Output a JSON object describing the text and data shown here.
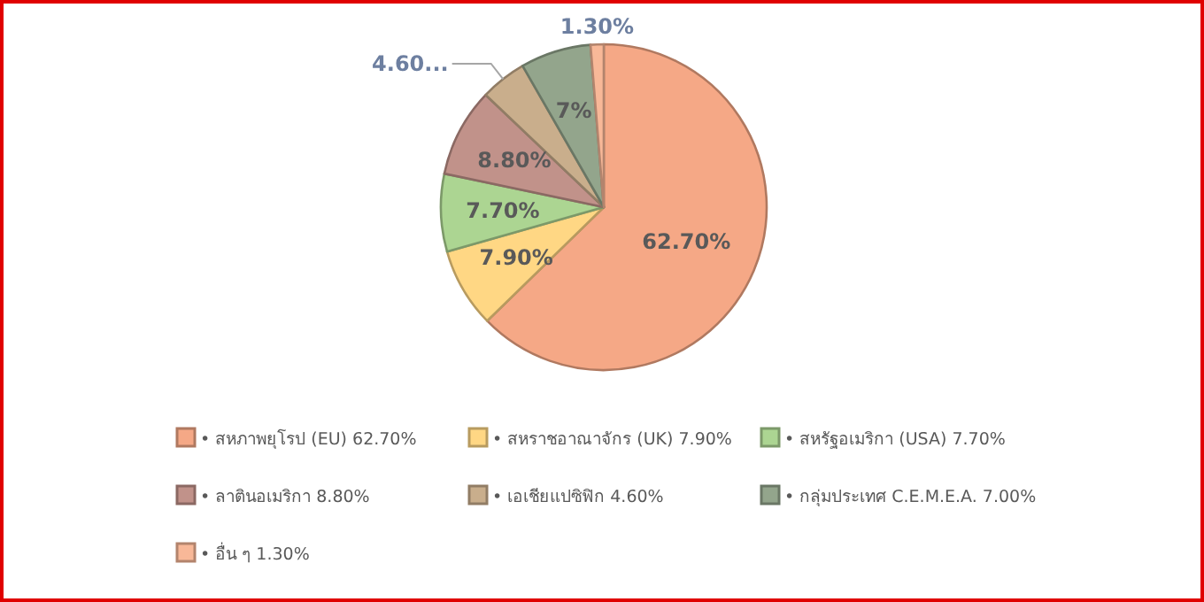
{
  "chart_data": {
    "type": "pie",
    "categories": [
      "• สหภาพยุโรป (EU) 62.70%",
      "• สหราชอาณาจักร (UK) 7.90%",
      "• สหรัฐอเมริกา (USA) 7.70%",
      "• ลาตินอเมริกา 8.80%",
      "• เอเชียแปซิฟิก 4.60%",
      "• กลุ่มประเทศ C.E.M.E.A. 7.00%",
      "• อื่น ๆ 1.30%"
    ],
    "values": [
      62.7,
      7.9,
      7.7,
      8.8,
      4.6,
      7.0,
      1.3
    ],
    "colors": [
      "#f5a886",
      "#ffd784",
      "#acd592",
      "#c1928a",
      "#c9ae8c",
      "#93a58c",
      "#f8b898"
    ],
    "value_labels": [
      "62.70%",
      "7.90%",
      "7.70%",
      "8.80%",
      "4.60...",
      "7%",
      "1.30%"
    ],
    "legend": "bottom"
  }
}
